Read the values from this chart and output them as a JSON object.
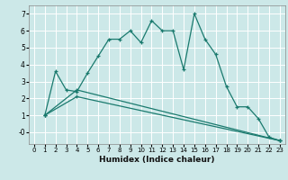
{
  "title": "",
  "xlabel": "Humidex (Indice chaleur)",
  "background_color": "#cce8e8",
  "grid_color": "#ffffff",
  "line_color": "#1a7a6e",
  "xlim": [
    -0.5,
    23.5
  ],
  "ylim": [
    -0.7,
    7.5
  ],
  "x_ticks": [
    0,
    1,
    2,
    3,
    4,
    5,
    6,
    7,
    8,
    9,
    10,
    11,
    12,
    13,
    14,
    15,
    16,
    17,
    18,
    19,
    20,
    21,
    22,
    23
  ],
  "y_ticks": [
    0,
    1,
    2,
    3,
    4,
    5,
    6,
    7
  ],
  "y_tick_labels": [
    "-0",
    "1",
    "2",
    "3",
    "4",
    "5",
    "6",
    "7"
  ],
  "series1_x": [
    1,
    2,
    3,
    4,
    5,
    6,
    7,
    8,
    9,
    10,
    11,
    12,
    13,
    14,
    15,
    16,
    17,
    18,
    19,
    20,
    21,
    22,
    23
  ],
  "series1_y": [
    1.0,
    3.6,
    2.5,
    2.4,
    3.5,
    4.5,
    5.5,
    5.5,
    6.0,
    5.3,
    6.6,
    6.0,
    6.0,
    3.7,
    7.0,
    5.5,
    4.6,
    2.7,
    1.5,
    1.5,
    0.8,
    -0.3,
    -0.5
  ],
  "series2_x": [
    1,
    4,
    23
  ],
  "series2_y": [
    1.0,
    2.5,
    -0.5
  ],
  "series3_x": [
    1,
    4,
    23
  ],
  "series3_y": [
    1.0,
    2.1,
    -0.5
  ]
}
